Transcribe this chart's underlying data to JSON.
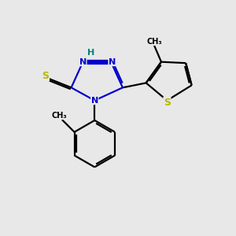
{
  "bg_color": "#e8e8e8",
  "bond_color": "#000000",
  "N_color": "#0000cc",
  "S_color": "#b8b800",
  "H_color": "#008080",
  "line_width": 1.6,
  "figsize": [
    3.0,
    3.0
  ],
  "dpi": 100,
  "xlim": [
    0,
    10
  ],
  "ylim": [
    0,
    10
  ]
}
